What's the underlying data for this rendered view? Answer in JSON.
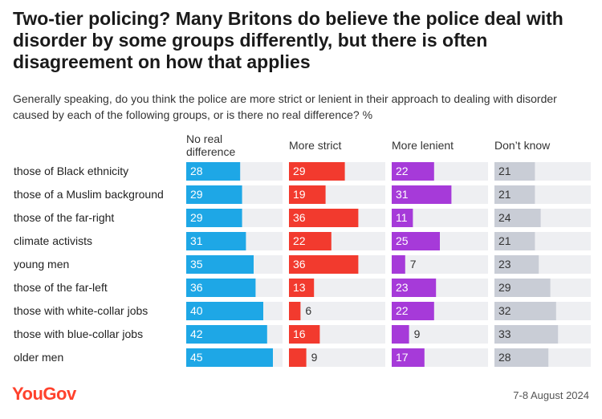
{
  "title": "Two-tier policing? Many Britons do believe the police deal with disorder by some groups differently, but there is often disagreement on how that applies",
  "subtitle": "Generally speaking, do you think the police are more strict or lenient in their approach to dealing with disorder caused by each of the following groups, or is there no real difference? %",
  "footer": {
    "brand": "YouGov",
    "date": "7-8 August 2024"
  },
  "colors": {
    "no_real_difference": "#1ea7e6",
    "more_strict": "#f23a2e",
    "more_lenient": "#a63ad9",
    "dont_know": "#c9cdd6",
    "track": "#eeeff2"
  },
  "chart_data": {
    "type": "bar",
    "categories": [
      "those of Black ethnicity",
      "those of a Muslim background",
      "those of the far-right",
      "climate activists",
      "young men",
      "those of the far-left",
      "those with white-collar jobs",
      "those with blue-collar jobs",
      "older men"
    ],
    "series": [
      {
        "name": "No real difference",
        "values": [
          28,
          29,
          29,
          31,
          35,
          36,
          40,
          42,
          45
        ]
      },
      {
        "name": "More strict",
        "values": [
          29,
          19,
          36,
          22,
          36,
          13,
          6,
          16,
          9
        ]
      },
      {
        "name": "More lenient",
        "values": [
          22,
          31,
          11,
          25,
          7,
          23,
          22,
          9,
          17
        ]
      },
      {
        "name": "Don’t know",
        "values": [
          21,
          21,
          24,
          21,
          23,
          29,
          32,
          33,
          28
        ]
      }
    ],
    "xlim": [
      0,
      50
    ]
  }
}
